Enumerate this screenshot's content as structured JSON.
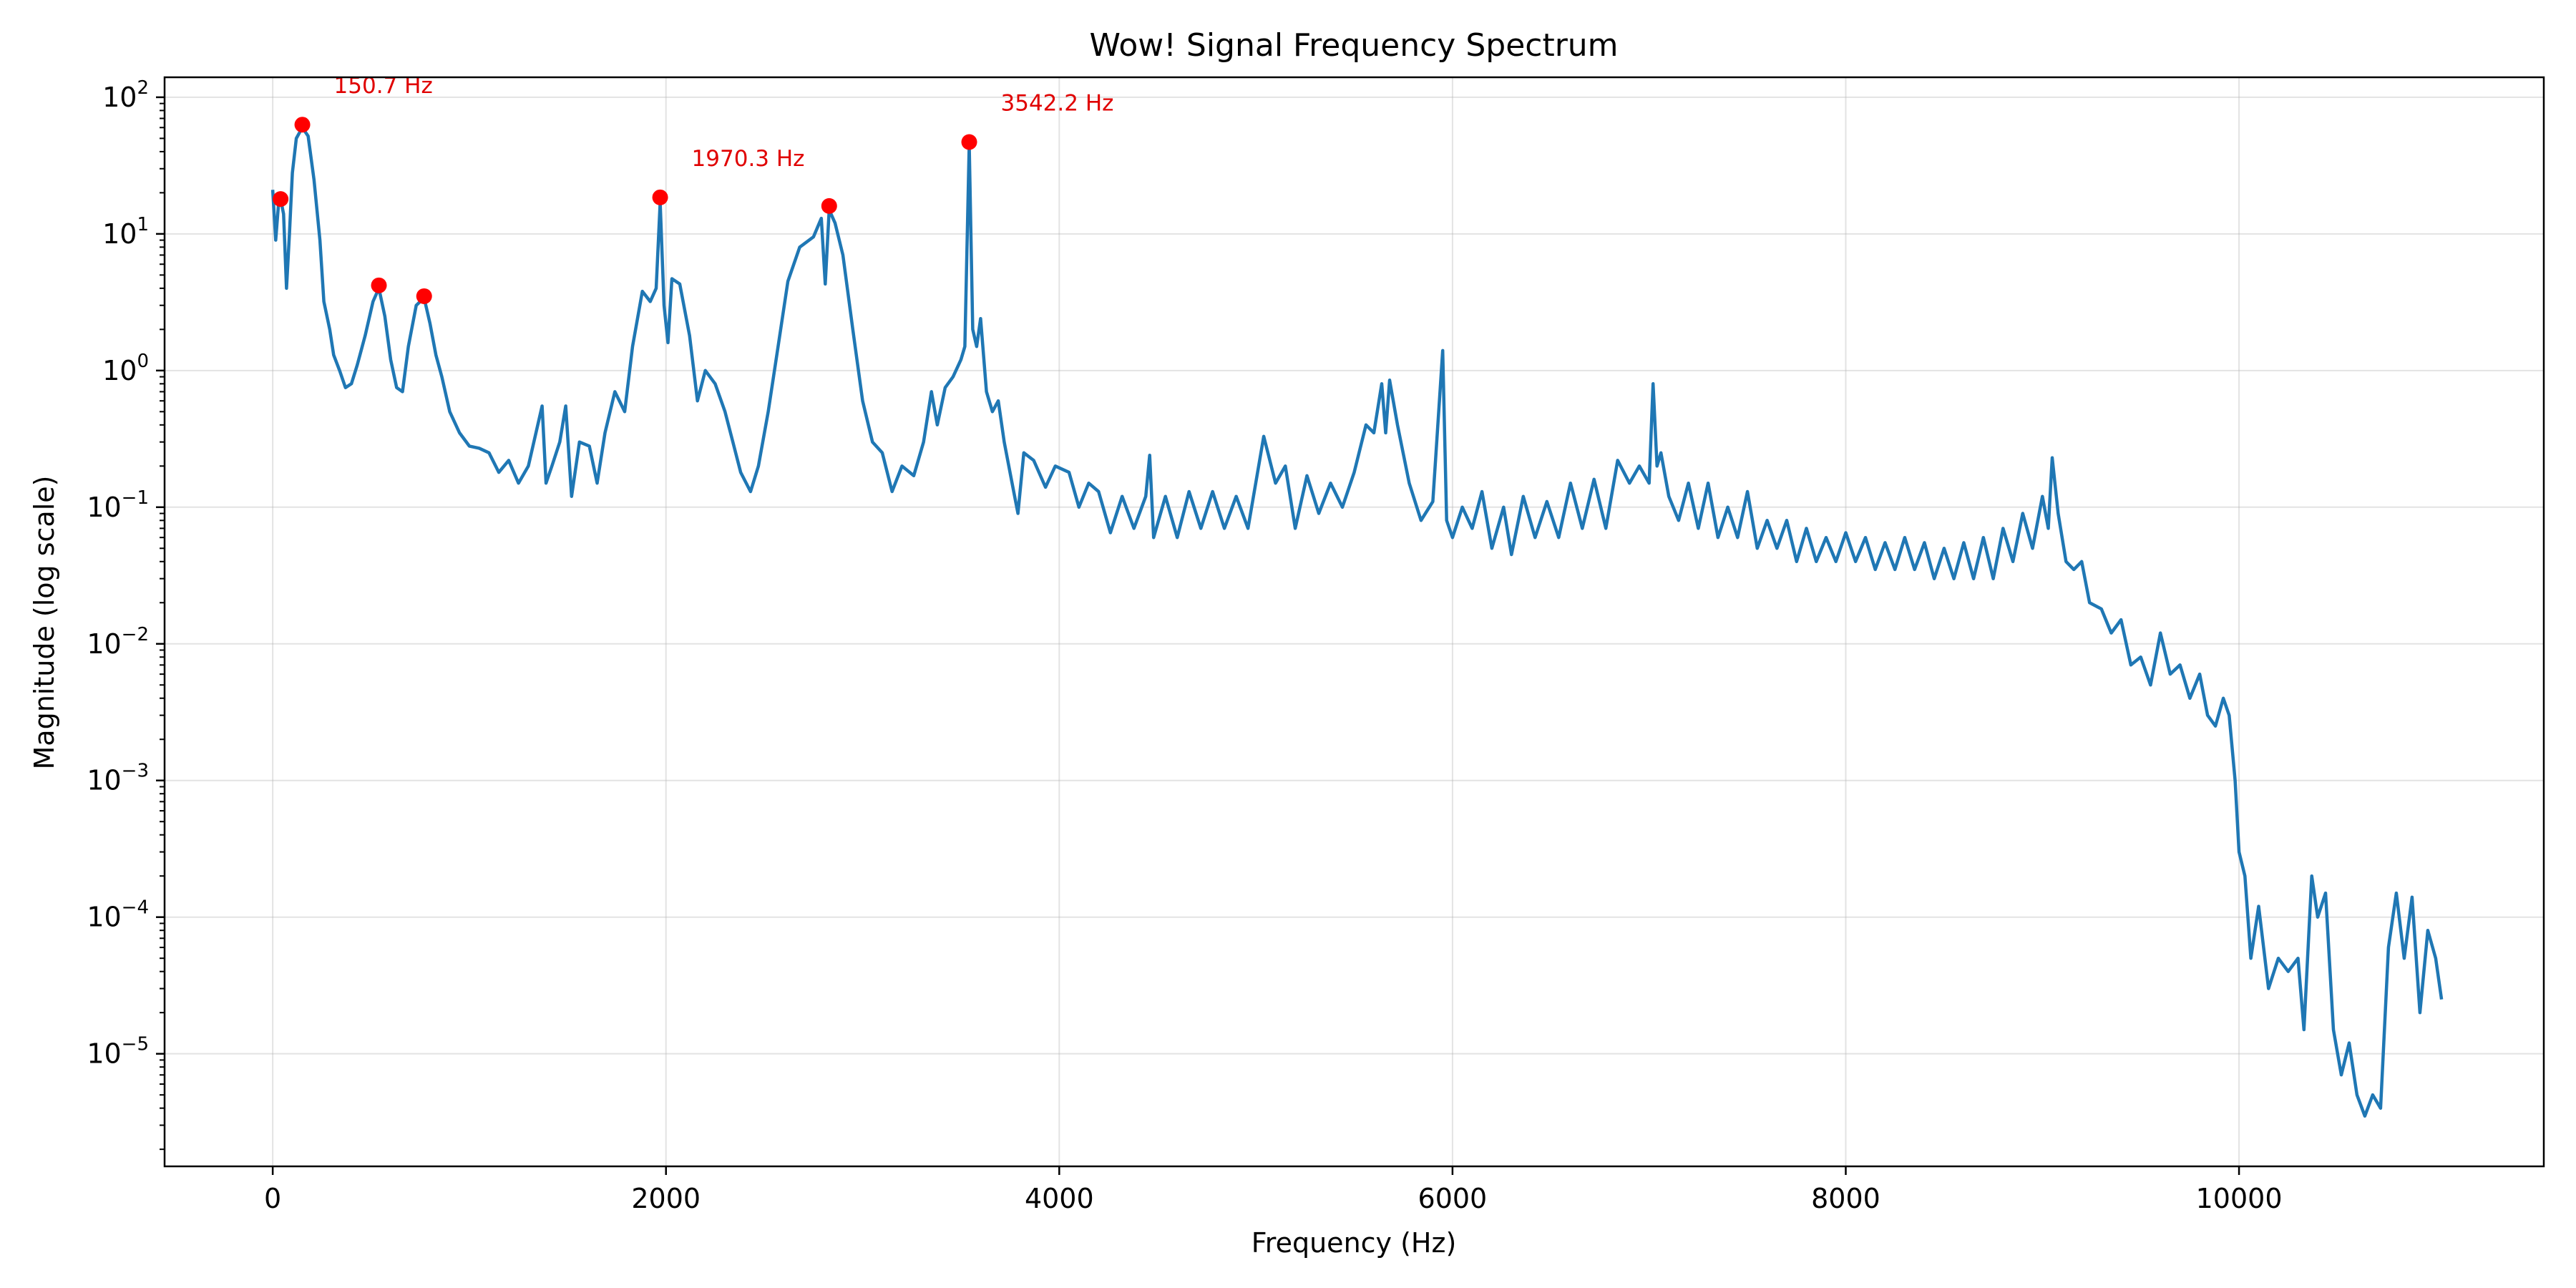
{
  "chart_data": {
    "type": "line",
    "title": "Wow! Signal Frequency Spectrum",
    "xlabel": "Frequency (Hz)",
    "ylabel": "Magnitude (log scale)",
    "xlim": [
      -550,
      11550
    ],
    "ylim": [
      1.5e-06,
      140
    ],
    "yscale": "log",
    "grid": true,
    "line_color": "#1f77b4",
    "peak_color": "#ff0000",
    "annotation_color": "#e00000",
    "x_ticks": [
      {
        "value": 0,
        "label": "0"
      },
      {
        "value": 2000,
        "label": "2000"
      },
      {
        "value": 4000,
        "label": "4000"
      },
      {
        "value": 6000,
        "label": "6000"
      },
      {
        "value": 8000,
        "label": "8000"
      },
      {
        "value": 10000,
        "label": "10000"
      }
    ],
    "y_ticks": [
      {
        "value": 100,
        "base": "10",
        "exp": "2"
      },
      {
        "value": 10,
        "base": "10",
        "exp": "1"
      },
      {
        "value": 1,
        "base": "10",
        "exp": "0"
      },
      {
        "value": 0.1,
        "base": "10",
        "exp": "−1"
      },
      {
        "value": 0.01,
        "base": "10",
        "exp": "−2"
      },
      {
        "value": 0.001,
        "base": "10",
        "exp": "−3"
      },
      {
        "value": 0.0001,
        "base": "10",
        "exp": "−4"
      },
      {
        "value": 1e-05,
        "base": "10",
        "exp": "−5"
      }
    ],
    "peaks": [
      {
        "x": 40,
        "y": 18
      },
      {
        "x": 150.7,
        "y": 63
      },
      {
        "x": 540,
        "y": 4.2
      },
      {
        "x": 770,
        "y": 3.5
      },
      {
        "x": 1970.3,
        "y": 18.5
      },
      {
        "x": 2830,
        "y": 16
      },
      {
        "x": 3542.2,
        "y": 47
      }
    ],
    "annotations": [
      {
        "text": "150.7 Hz",
        "x": 150.7,
        "y": 63
      },
      {
        "text": "1970.3 Hz",
        "x": 1970.3,
        "y": 18.5
      },
      {
        "text": "3542.2 Hz",
        "x": 3542.2,
        "y": 47
      }
    ],
    "series": [
      {
        "points": [
          [
            0,
            21
          ],
          [
            15,
            9
          ],
          [
            30,
            17
          ],
          [
            40,
            18
          ],
          [
            55,
            14
          ],
          [
            70,
            4
          ],
          [
            85,
            10
          ],
          [
            100,
            28
          ],
          [
            120,
            50
          ],
          [
            150.7,
            60
          ],
          [
            180,
            52
          ],
          [
            210,
            25
          ],
          [
            240,
            9
          ],
          [
            260,
            3.2
          ],
          [
            290,
            2
          ],
          [
            310,
            1.3
          ],
          [
            340,
            1
          ],
          [
            370,
            0.75
          ],
          [
            400,
            0.8
          ],
          [
            430,
            1.1
          ],
          [
            470,
            1.8
          ],
          [
            510,
            3.2
          ],
          [
            540,
            4
          ],
          [
            570,
            2.5
          ],
          [
            600,
            1.2
          ],
          [
            630,
            0.75
          ],
          [
            660,
            0.7
          ],
          [
            690,
            1.5
          ],
          [
            730,
            3
          ],
          [
            770,
            3.4
          ],
          [
            800,
            2.2
          ],
          [
            830,
            1.3
          ],
          [
            860,
            0.9
          ],
          [
            900,
            0.5
          ],
          [
            950,
            0.35
          ],
          [
            1000,
            0.28
          ],
          [
            1050,
            0.27
          ],
          [
            1100,
            0.25
          ],
          [
            1150,
            0.18
          ],
          [
            1200,
            0.22
          ],
          [
            1250,
            0.15
          ],
          [
            1300,
            0.2
          ],
          [
            1370,
            0.55
          ],
          [
            1390,
            0.15
          ],
          [
            1420,
            0.2
          ],
          [
            1460,
            0.3
          ],
          [
            1490,
            0.55
          ],
          [
            1520,
            0.12
          ],
          [
            1560,
            0.3
          ],
          [
            1610,
            0.28
          ],
          [
            1650,
            0.15
          ],
          [
            1690,
            0.35
          ],
          [
            1740,
            0.7
          ],
          [
            1790,
            0.5
          ],
          [
            1830,
            1.5
          ],
          [
            1880,
            3.8
          ],
          [
            1920,
            3.2
          ],
          [
            1950,
            4
          ],
          [
            1970.3,
            17
          ],
          [
            1990,
            3
          ],
          [
            2010,
            1.6
          ],
          [
            2030,
            4.7
          ],
          [
            2070,
            4.3
          ],
          [
            2120,
            1.8
          ],
          [
            2160,
            0.6
          ],
          [
            2200,
            1
          ],
          [
            2250,
            0.8
          ],
          [
            2300,
            0.5
          ],
          [
            2340,
            0.3
          ],
          [
            2380,
            0.18
          ],
          [
            2430,
            0.13
          ],
          [
            2470,
            0.2
          ],
          [
            2520,
            0.5
          ],
          [
            2570,
            1.5
          ],
          [
            2620,
            4.5
          ],
          [
            2680,
            8
          ],
          [
            2750,
            9.5
          ],
          [
            2790,
            13
          ],
          [
            2810,
            4.3
          ],
          [
            2830,
            15
          ],
          [
            2860,
            12
          ],
          [
            2900,
            7
          ],
          [
            2950,
            2
          ],
          [
            3000,
            0.6
          ],
          [
            3050,
            0.3
          ],
          [
            3100,
            0.25
          ],
          [
            3150,
            0.13
          ],
          [
            3200,
            0.2
          ],
          [
            3260,
            0.17
          ],
          [
            3310,
            0.3
          ],
          [
            3350,
            0.7
          ],
          [
            3380,
            0.4
          ],
          [
            3420,
            0.75
          ],
          [
            3460,
            0.9
          ],
          [
            3500,
            1.2
          ],
          [
            3520,
            1.5
          ],
          [
            3542.2,
            45
          ],
          [
            3560,
            2
          ],
          [
            3580,
            1.5
          ],
          [
            3600,
            2.4
          ],
          [
            3630,
            0.7
          ],
          [
            3660,
            0.5
          ],
          [
            3690,
            0.6
          ],
          [
            3720,
            0.3
          ],
          [
            3760,
            0.15
          ],
          [
            3790,
            0.09
          ],
          [
            3820,
            0.25
          ],
          [
            3870,
            0.22
          ],
          [
            3930,
            0.14
          ],
          [
            3980,
            0.2
          ],
          [
            4050,
            0.18
          ],
          [
            4100,
            0.1
          ],
          [
            4150,
            0.15
          ],
          [
            4200,
            0.13
          ],
          [
            4260,
            0.065
          ],
          [
            4320,
            0.12
          ],
          [
            4380,
            0.07
          ],
          [
            4440,
            0.12
          ],
          [
            4460,
            0.24
          ],
          [
            4480,
            0.06
          ],
          [
            4540,
            0.12
          ],
          [
            4600,
            0.06
          ],
          [
            4660,
            0.13
          ],
          [
            4720,
            0.07
          ],
          [
            4780,
            0.13
          ],
          [
            4840,
            0.07
          ],
          [
            4900,
            0.12
          ],
          [
            4960,
            0.07
          ],
          [
            5040,
            0.33
          ],
          [
            5100,
            0.15
          ],
          [
            5150,
            0.2
          ],
          [
            5200,
            0.07
          ],
          [
            5260,
            0.17
          ],
          [
            5320,
            0.09
          ],
          [
            5380,
            0.15
          ],
          [
            5440,
            0.1
          ],
          [
            5500,
            0.18
          ],
          [
            5560,
            0.4
          ],
          [
            5600,
            0.35
          ],
          [
            5640,
            0.8
          ],
          [
            5660,
            0.35
          ],
          [
            5680,
            0.85
          ],
          [
            5720,
            0.4
          ],
          [
            5780,
            0.15
          ],
          [
            5840,
            0.08
          ],
          [
            5900,
            0.11
          ],
          [
            5950,
            1.4
          ],
          [
            5970,
            0.08
          ],
          [
            6000,
            0.06
          ],
          [
            6050,
            0.1
          ],
          [
            6100,
            0.07
          ],
          [
            6150,
            0.13
          ],
          [
            6200,
            0.05
          ],
          [
            6260,
            0.1
          ],
          [
            6300,
            0.045
          ],
          [
            6360,
            0.12
          ],
          [
            6420,
            0.06
          ],
          [
            6480,
            0.11
          ],
          [
            6540,
            0.06
          ],
          [
            6600,
            0.15
          ],
          [
            6660,
            0.07
          ],
          [
            6720,
            0.16
          ],
          [
            6780,
            0.07
          ],
          [
            6840,
            0.22
          ],
          [
            6900,
            0.15
          ],
          [
            6950,
            0.2
          ],
          [
            7000,
            0.15
          ],
          [
            7020,
            0.8
          ],
          [
            7040,
            0.2
          ],
          [
            7060,
            0.25
          ],
          [
            7100,
            0.12
          ],
          [
            7150,
            0.08
          ],
          [
            7200,
            0.15
          ],
          [
            7250,
            0.07
          ],
          [
            7300,
            0.15
          ],
          [
            7350,
            0.06
          ],
          [
            7400,
            0.1
          ],
          [
            7450,
            0.06
          ],
          [
            7500,
            0.13
          ],
          [
            7550,
            0.05
          ],
          [
            7600,
            0.08
          ],
          [
            7650,
            0.05
          ],
          [
            7700,
            0.08
          ],
          [
            7750,
            0.04
          ],
          [
            7800,
            0.07
          ],
          [
            7850,
            0.04
          ],
          [
            7900,
            0.06
          ],
          [
            7950,
            0.04
          ],
          [
            8000,
            0.065
          ],
          [
            8050,
            0.04
          ],
          [
            8100,
            0.06
          ],
          [
            8150,
            0.035
          ],
          [
            8200,
            0.055
          ],
          [
            8250,
            0.035
          ],
          [
            8300,
            0.06
          ],
          [
            8350,
            0.035
          ],
          [
            8400,
            0.055
          ],
          [
            8450,
            0.03
          ],
          [
            8500,
            0.05
          ],
          [
            8550,
            0.03
          ],
          [
            8600,
            0.055
          ],
          [
            8650,
            0.03
          ],
          [
            8700,
            0.06
          ],
          [
            8750,
            0.03
          ],
          [
            8800,
            0.07
          ],
          [
            8850,
            0.04
          ],
          [
            8900,
            0.09
          ],
          [
            8950,
            0.05
          ],
          [
            9000,
            0.12
          ],
          [
            9030,
            0.07
          ],
          [
            9050,
            0.23
          ],
          [
            9080,
            0.09
          ],
          [
            9120,
            0.04
          ],
          [
            9160,
            0.035
          ],
          [
            9200,
            0.04
          ],
          [
            9240,
            0.02
          ],
          [
            9300,
            0.018
          ],
          [
            9350,
            0.012
          ],
          [
            9400,
            0.015
          ],
          [
            9450,
            0.007
          ],
          [
            9500,
            0.008
          ],
          [
            9550,
            0.005
          ],
          [
            9600,
            0.012
          ],
          [
            9650,
            0.006
          ],
          [
            9700,
            0.007
          ],
          [
            9750,
            0.004
          ],
          [
            9800,
            0.006
          ],
          [
            9840,
            0.003
          ],
          [
            9880,
            0.0025
          ],
          [
            9920,
            0.004
          ],
          [
            9950,
            0.003
          ],
          [
            9980,
            0.001
          ],
          [
            10000,
            0.0003
          ],
          [
            10030,
            0.0002
          ],
          [
            10060,
            5e-05
          ],
          [
            10100,
            0.00012
          ],
          [
            10150,
            3e-05
          ],
          [
            10200,
            5e-05
          ],
          [
            10250,
            4e-05
          ],
          [
            10300,
            5e-05
          ],
          [
            10330,
            1.5e-05
          ],
          [
            10370,
            0.0002
          ],
          [
            10400,
            0.0001
          ],
          [
            10440,
            0.00015
          ],
          [
            10480,
            1.5e-05
          ],
          [
            10520,
            7e-06
          ],
          [
            10560,
            1.2e-05
          ],
          [
            10600,
            5e-06
          ],
          [
            10640,
            3.5e-06
          ],
          [
            10680,
            5e-06
          ],
          [
            10720,
            4e-06
          ],
          [
            10760,
            6e-05
          ],
          [
            10800,
            0.00015
          ],
          [
            10840,
            5e-05
          ],
          [
            10880,
            0.00014
          ],
          [
            10920,
            2e-05
          ],
          [
            10960,
            8e-05
          ],
          [
            11000,
            5e-05
          ],
          [
            11030,
            2.5e-05
          ]
        ]
      }
    ]
  }
}
